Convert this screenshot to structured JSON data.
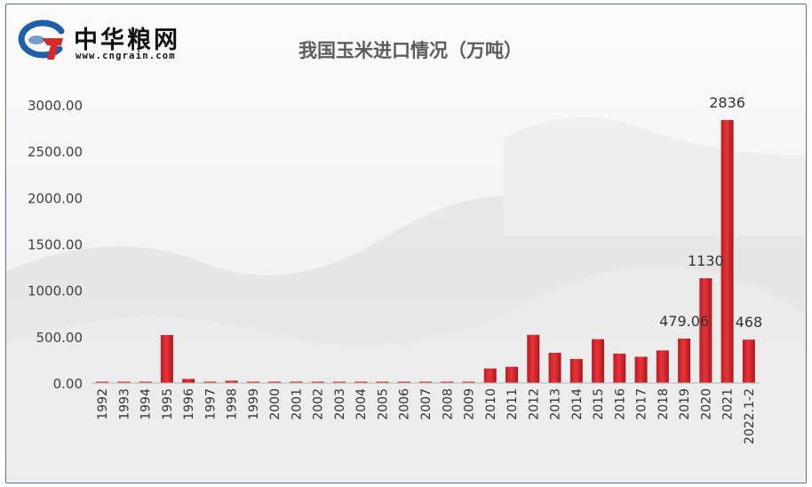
{
  "logo": {
    "name_cn": "中华粮网",
    "url": "www.cngrain.com",
    "icon": "cngrain-logo-mark",
    "colors": {
      "red": "#d7282a",
      "blue": "#1f5fa8"
    }
  },
  "chart_data": {
    "type": "bar",
    "title": "我国玉米进口情况（万吨）",
    "xlabel": "",
    "ylabel": "",
    "categories": [
      "1992",
      "1993",
      "1994",
      "1995",
      "1996",
      "1997",
      "1998",
      "1999",
      "2000",
      "2001",
      "2002",
      "2003",
      "2004",
      "2005",
      "2006",
      "2007",
      "2008",
      "2009",
      "2010",
      "2011",
      "2012",
      "2013",
      "2014",
      "2015",
      "2016",
      "2017",
      "2018",
      "2019",
      "2020",
      "2021",
      "2022.1-2"
    ],
    "values": [
      0.1,
      0.1,
      0.1,
      518,
      44,
      0.3,
      25,
      7,
      0.3,
      4,
      1,
      0.1,
      0.2,
      0.4,
      7,
      4,
      5,
      8,
      157,
      175,
      520,
      326,
      260,
      473,
      317,
      283,
      352,
      479.06,
      1130,
      2836,
      468
    ],
    "data_labels": [
      {
        "category": "2019",
        "text": "479.06"
      },
      {
        "category": "2020",
        "text": "1130"
      },
      {
        "category": "2021",
        "text": "2836"
      },
      {
        "category": "2022.1-2",
        "text": "468"
      }
    ],
    "y_ticks": [
      "0.00",
      "500.00",
      "1000.00",
      "1500.00",
      "2000.00",
      "2500.00",
      "3000.00"
    ],
    "ylim": [
      0,
      3000
    ],
    "grid": false,
    "legend": "none",
    "bar_color": "#d8262c"
  }
}
